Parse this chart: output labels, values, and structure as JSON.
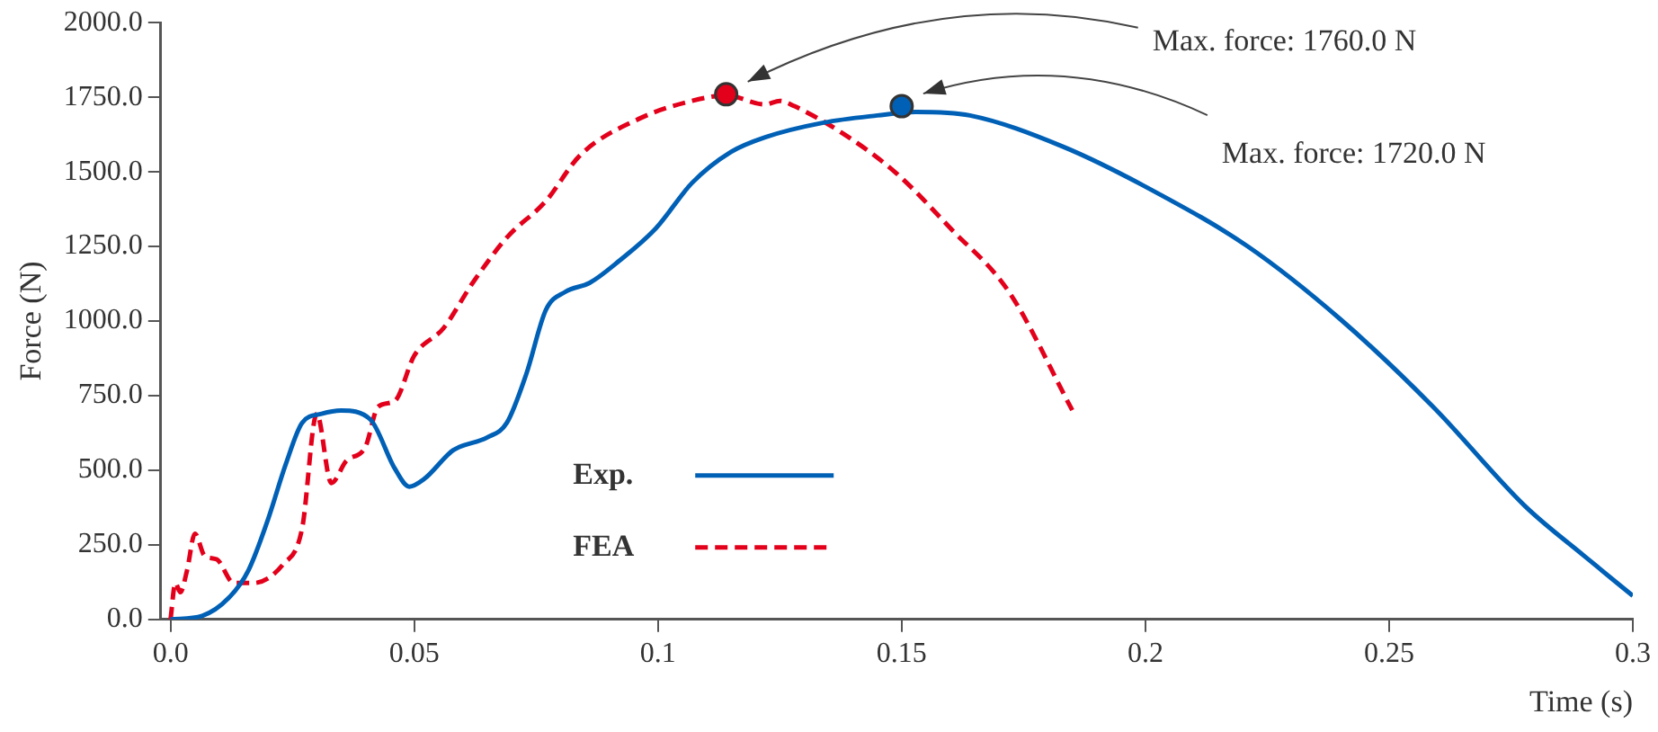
{
  "chart_data": {
    "type": "line",
    "xlabel": "Time (s)",
    "ylabel": "Force (N)",
    "xlim": [
      -0.002,
      0.3
    ],
    "ylim": [
      0,
      2000
    ],
    "xticks": [
      {
        "value": 0,
        "label": "0.0"
      },
      0.05,
      0.1,
      0.15,
      0.2,
      0.25,
      0.3
    ],
    "yticks": [
      {
        "value": 0,
        "label": "0.0"
      },
      {
        "value": 250,
        "label": "250.0"
      },
      {
        "value": 500,
        "label": "500.0"
      },
      {
        "value": 750,
        "label": "750.0"
      },
      {
        "value": 1000,
        "label": "1000.0"
      },
      {
        "value": 1250,
        "label": "1250.0"
      },
      {
        "value": 1500,
        "label": "1500.0"
      },
      {
        "value": 1750,
        "label": "1750.0"
      },
      {
        "value": 2000,
        "label": "2000.0"
      }
    ],
    "grid": false,
    "legend": "bottom",
    "marker": "none",
    "series": [
      {
        "name": "Exp.",
        "color": "#0060b6",
        "line_style": "solid",
        "x": [
          0,
          0.0065,
          0.012,
          0.016,
          0.02,
          0.0236,
          0.027,
          0.031,
          0.035,
          0.041,
          0.046,
          0.049,
          0.052,
          0.058,
          0.065,
          0.069,
          0.073,
          0.077,
          0.081,
          0.086,
          0.092,
          0.0996,
          0.107,
          0.115,
          0.122,
          0.134,
          0.145,
          0.153,
          0.164,
          0.183,
          0.202,
          0.221,
          0.24,
          0.259,
          0.278,
          0.29,
          0.3
        ],
        "values": [
          0,
          12,
          73,
          165,
          335,
          518,
          659,
          689,
          700,
          670,
          506,
          445,
          470,
          567,
          610,
          659,
          823,
          1037,
          1098,
          1128,
          1201,
          1311,
          1463,
          1567,
          1616,
          1665,
          1689,
          1701,
          1689,
          1585,
          1433,
          1250,
          1006,
          713,
          378,
          213,
          79
        ]
      },
      {
        "name": "FEA",
        "color": "#e3001b",
        "line_style": "dashed",
        "x": [
          0,
          0.001,
          0.002,
          0.0034,
          0.005,
          0.007,
          0.0095,
          0.013,
          0.017,
          0.023,
          0.027,
          0.03,
          0.033,
          0.036,
          0.04,
          0.0426,
          0.046,
          0.05,
          0.056,
          0.062,
          0.069,
          0.077,
          0.084,
          0.096,
          0.107,
          0.114,
          0.122,
          0.125,
          0.128,
          0.138,
          0.149,
          0.16,
          0.172,
          0.185
        ],
        "values": [
          0,
          122,
          91,
          165,
          287,
          213,
          201,
          122,
          122,
          183,
          305,
          689,
          457,
          530,
          579,
          713,
          732,
          884,
          976,
          1128,
          1280,
          1402,
          1555,
          1677,
          1738,
          1756,
          1726,
          1738,
          1720,
          1628,
          1494,
          1311,
          1098,
          701
        ]
      },
      {
        "type": "scatter",
        "color": "#e3001b",
        "marker": "circle",
        "x": [
          0.114
        ],
        "values": [
          1760
        ]
      },
      {
        "type": "scatter",
        "color": "#0060b6",
        "marker": "circle",
        "x": [
          0.15
        ],
        "values": [
          1720
        ]
      }
    ],
    "annotations": [
      "Max. force: 1760.0 N",
      "Max. force: 1720.0 N"
    ]
  }
}
